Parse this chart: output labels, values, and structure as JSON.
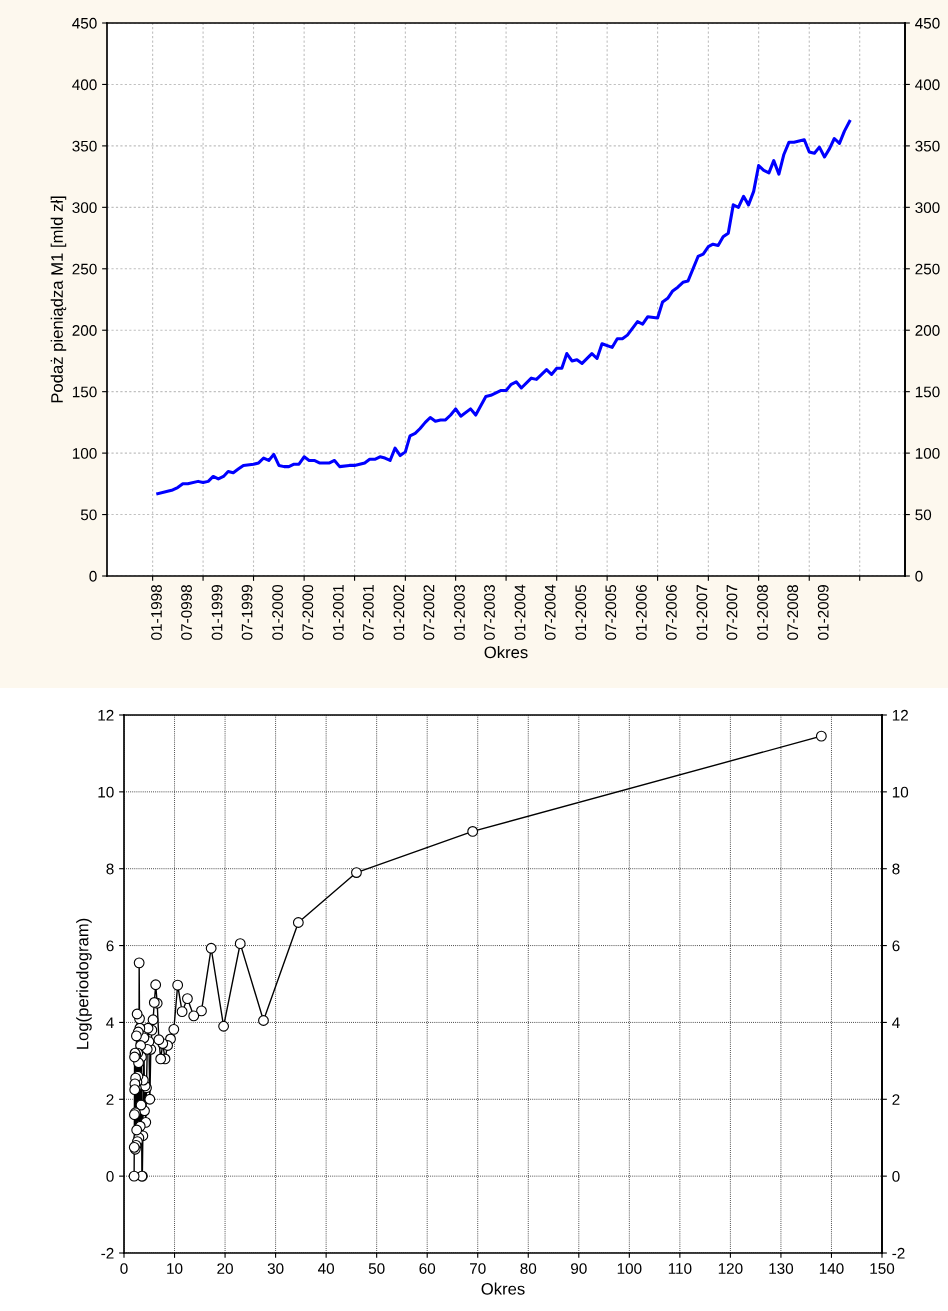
{
  "chart_data": [
    {
      "type": "line",
      "xlabel": "Okres",
      "ylabel": "Podaż pieniądza M1 [mld zł]",
      "color": "#0000ff",
      "grid": true,
      "line_style": "solid",
      "marker": "none",
      "x": [
        "1998-01",
        "1998-03",
        "1998-04",
        "1998-05",
        "1998-06",
        "1998-07",
        "1998-09",
        "1998-10",
        "1998-11",
        "1998-12",
        "1999-01",
        "1999-02",
        "1999-03",
        "1999-04",
        "1999-05",
        "1999-06",
        "1999-08",
        "1999-09",
        "1999-10",
        "1999-11",
        "1999-12",
        "2000-01",
        "2000-02",
        "2000-03",
        "2000-04",
        "2000-05",
        "2000-06",
        "2000-07",
        "2000-08",
        "2000-09",
        "2000-11",
        "2000-12",
        "2001-01",
        "2001-03",
        "2001-04",
        "2001-06",
        "2001-07",
        "2001-08",
        "2001-09",
        "2001-10",
        "2001-11",
        "2001-12",
        "2002-01",
        "2002-02",
        "2002-03",
        "2002-04",
        "2002-05",
        "2002-06",
        "2002-07",
        "2002-08",
        "2002-09",
        "2002-10",
        "2002-11",
        "2002-12",
        "2003-01",
        "2003-03",
        "2003-04",
        "2003-06",
        "2003-07",
        "2003-09",
        "2003-10",
        "2003-11",
        "2003-12",
        "2004-01",
        "2004-03",
        "2004-04",
        "2004-06",
        "2004-07",
        "2004-08",
        "2004-09",
        "2004-10",
        "2004-11",
        "2004-12",
        "2005-01",
        "2005-03",
        "2005-04",
        "2005-05",
        "2005-07",
        "2005-08",
        "2005-09",
        "2005-10",
        "2005-12",
        "2006-01",
        "2006-02",
        "2006-04",
        "2006-05",
        "2006-06",
        "2006-07",
        "2006-08",
        "2006-09",
        "2006-10",
        "2006-12",
        "2007-01",
        "2007-02",
        "2007-03",
        "2007-04",
        "2007-05",
        "2007-06",
        "2007-07",
        "2007-08",
        "2007-09",
        "2007-10",
        "2007-11",
        "2007-12",
        "2008-01",
        "2008-02",
        "2008-03",
        "2008-04",
        "2008-05",
        "2008-06",
        "2008-07",
        "2008-09",
        "2008-10",
        "2008-11",
        "2008-12",
        "2009-01",
        "2009-02",
        "2009-03",
        "2009-04",
        "2009-05",
        "2009-06"
      ],
      "values": [
        67,
        69,
        70,
        72,
        75,
        75,
        77,
        76,
        77,
        81,
        79,
        81,
        85,
        84,
        87,
        90,
        91,
        92,
        96,
        94,
        99,
        90,
        89,
        89,
        91,
        91,
        97,
        94,
        94,
        92,
        92,
        94,
        89,
        90,
        90,
        92,
        95,
        95,
        97,
        96,
        94,
        104,
        98,
        101,
        114,
        116,
        120,
        125,
        129,
        126,
        127,
        127,
        131,
        136,
        130,
        136,
        131,
        146,
        147,
        151,
        151,
        156,
        158,
        153,
        161,
        160,
        168,
        164,
        169,
        169,
        181,
        175,
        176,
        173,
        181,
        177,
        189,
        186,
        193,
        193,
        196,
        207,
        205,
        211,
        210,
        223,
        226,
        232,
        235,
        239,
        240,
        260,
        262,
        268,
        270,
        269,
        276,
        279,
        302,
        300,
        309,
        302,
        313,
        334,
        330,
        328,
        338,
        327,
        343,
        353,
        353,
        355,
        345,
        344,
        349,
        341,
        348,
        356,
        352,
        362,
        370
      ],
      "xlim": [
        "1997-03",
        "2010-05"
      ],
      "xticks": [
        {
          "value": "1997-12",
          "label": null
        },
        {
          "value": "1998-10",
          "label": null
        },
        {
          "value": "1999-08",
          "label": null
        },
        {
          "value": "2000-06",
          "label": null
        },
        {
          "value": "2001-04",
          "label": null
        },
        {
          "value": "2002-02",
          "label": null
        },
        {
          "value": "2002-12",
          "label": null
        },
        {
          "value": "2003-10",
          "label": null
        },
        {
          "value": "2004-08",
          "label": null
        },
        {
          "value": "2005-06",
          "label": null
        },
        {
          "value": "2006-04",
          "label": null
        },
        {
          "value": "2007-02",
          "label": null
        },
        {
          "value": "2007-12",
          "label": null
        },
        {
          "value": "2008-10",
          "label": null
        },
        {
          "value": "2009-08",
          "label": null
        },
        {
          "value": "1998-01",
          "label": "01-1998"
        },
        {
          "value": "1998-07",
          "label": "07-0998"
        },
        {
          "value": "1999-01",
          "label": "01-1999"
        },
        {
          "value": "1999-07",
          "label": "07-1999"
        },
        {
          "value": "2000-01",
          "label": "01-2000"
        },
        {
          "value": "2000-07",
          "label": "07-2000"
        },
        {
          "value": "2001-01",
          "label": "01-2001"
        },
        {
          "value": "2001-07",
          "label": "07-2001"
        },
        {
          "value": "2002-01",
          "label": "01-2002"
        },
        {
          "value": "2002-07",
          "label": "07-2002"
        },
        {
          "value": "2003-01",
          "label": "01-2003"
        },
        {
          "value": "2003-07",
          "label": "07-2003"
        },
        {
          "value": "2004-01",
          "label": "01-2004"
        },
        {
          "value": "2004-07",
          "label": "07-2004"
        },
        {
          "value": "2005-01",
          "label": "01-2005"
        },
        {
          "value": "2005-07",
          "label": "07-2005"
        },
        {
          "value": "2006-01",
          "label": "01-2006"
        },
        {
          "value": "2006-07",
          "label": "07-2006"
        },
        {
          "value": "2007-01",
          "label": "01-2007"
        },
        {
          "value": "2007-07",
          "label": "07-2007"
        },
        {
          "value": "2008-01",
          "label": "01-2008"
        },
        {
          "value": "2008-07",
          "label": "07-2008"
        },
        {
          "value": "2009-01",
          "label": "01-2009"
        }
      ],
      "ylim": [
        0,
        450
      ],
      "yticks": [
        0,
        50,
        100,
        150,
        200,
        250,
        300,
        350,
        400,
        450
      ],
      "y2lim": [
        0,
        450
      ],
      "y2ticks": [
        0,
        50,
        100,
        150,
        200,
        250,
        300,
        350,
        400,
        450
      ]
    },
    {
      "type": "line",
      "xlabel": "Okres",
      "ylabel": "Log(periodogram)",
      "color": "#000000",
      "grid": true,
      "line_style": "solid",
      "marker": "circle",
      "x": [
        138,
        69,
        46,
        34.5,
        27.6,
        23,
        19.71,
        17.25,
        15.33,
        13.8,
        12.55,
        11.5,
        10.62,
        9.86,
        9.2,
        8.63,
        8.12,
        7.67,
        7.26,
        6.9,
        6.57,
        6.27,
        6,
        5.75,
        5.52,
        5.31,
        5.11,
        4.93,
        4.76,
        4.6,
        4.45,
        4.31,
        4.18,
        4.06,
        3.94,
        3.83,
        3.73,
        3.63,
        3.54,
        3.45,
        3.37,
        3.29,
        3.21,
        3.14,
        3.07,
        3,
        2.94,
        2.88,
        2.82,
        2.76,
        2.71,
        2.65,
        2.6,
        2.56,
        2.51,
        2.46,
        2.42,
        2.38,
        2.34,
        2.3,
        2.26,
        2.23,
        2.19,
        2.16,
        2.12,
        2.09,
        2.06,
        2.03,
        2
      ],
      "values": [
        11.45,
        8.97,
        7.9,
        6.6,
        4.05,
        6.05,
        3.9,
        5.93,
        4.3,
        4.17,
        4.62,
        4.28,
        4.97,
        3.82,
        3.57,
        3.4,
        3.05,
        3.45,
        3.05,
        3.55,
        4.5,
        4.98,
        4.52,
        4.07,
        3.8,
        3.3,
        2,
        3.5,
        3.85,
        3.3,
        2.3,
        1.4,
        2.35,
        1.7,
        3.6,
        2.5,
        1.05,
        0,
        0,
        3.1,
        1.85,
        3.4,
        1.3,
        3.85,
        4.1,
        5.55,
        1,
        2.95,
        3.75,
        2.6,
        3.2,
        0.9,
        4.22,
        2.45,
        1.2,
        3.65,
        2.3,
        0.8,
        3.15,
        2.55,
        1.65,
        0.7,
        3.2,
        2.4,
        2.25,
        3.1,
        1.6,
        0.75,
        0
      ],
      "xlim": [
        0,
        150
      ],
      "xticks": [
        0,
        10,
        20,
        30,
        40,
        50,
        60,
        70,
        80,
        90,
        100,
        110,
        120,
        130,
        140,
        150
      ],
      "ylim": [
        -2,
        12
      ],
      "yticks": [
        -2,
        0,
        2,
        4,
        6,
        8,
        10,
        12
      ],
      "y2lim": [
        -2,
        12
      ],
      "y2ticks": [
        -2,
        0,
        2,
        4,
        6,
        8,
        10,
        12
      ]
    }
  ]
}
